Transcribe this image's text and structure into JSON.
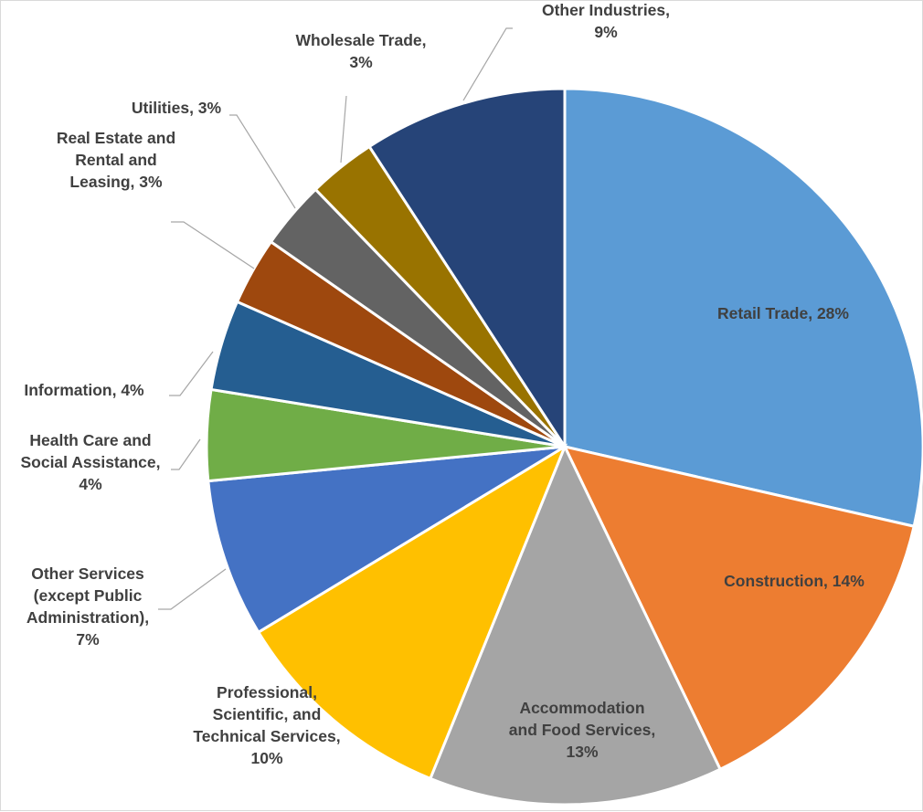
{
  "chart_data": {
    "type": "pie",
    "slices": [
      {
        "name": "Retail Trade",
        "value": 28,
        "color": "#5b9bd5",
        "label": [
          "Retail Trade, 28%"
        ]
      },
      {
        "name": "Construction",
        "value": 14,
        "color": "#ed7d31",
        "label": [
          "Construction, 14%"
        ]
      },
      {
        "name": "Accommodation and Food Services",
        "value": 13,
        "color": "#a5a5a5",
        "label": [
          "Accommodation",
          "and Food Services,",
          "13%"
        ]
      },
      {
        "name": "Professional, Scientific, and Technical Services",
        "value": 10,
        "color": "#ffc000",
        "label": [
          "Professional,",
          "Scientific, and",
          "Technical Services,",
          "10%"
        ]
      },
      {
        "name": "Other Services (except Public Administration)",
        "value": 7,
        "color": "#4472c4",
        "label": [
          "Other Services",
          "(except Public",
          "Administration),",
          "7%"
        ]
      },
      {
        "name": "Health Care and Social Assistance",
        "value": 4,
        "color": "#70ad47",
        "label": [
          "Health Care and",
          "Social Assistance,",
          "4%"
        ]
      },
      {
        "name": "Information",
        "value": 4,
        "color": "#255e91",
        "label": [
          "Information, 4%"
        ]
      },
      {
        "name": "Real Estate and Rental and Leasing",
        "value": 3,
        "color": "#9e480e",
        "label": [
          "Real Estate and",
          "Rental and",
          "Leasing, 3%"
        ]
      },
      {
        "name": "Utilities",
        "value": 3,
        "color": "#636363",
        "label": [
          "Utilities, 3%"
        ]
      },
      {
        "name": "Wholesale Trade",
        "value": 3,
        "color": "#997300",
        "label": [
          "Wholesale Trade,",
          "3%"
        ]
      },
      {
        "name": "Other Industries",
        "value": 9,
        "color": "#264478",
        "label": [
          "Other Industries,",
          "9%"
        ]
      }
    ],
    "start": "12 o'clock",
    "direction": "clockwise",
    "legend": "none",
    "data_labels": "category name and percentage",
    "label_color": "#404040",
    "leader_line_color": "#a6a6a6"
  }
}
